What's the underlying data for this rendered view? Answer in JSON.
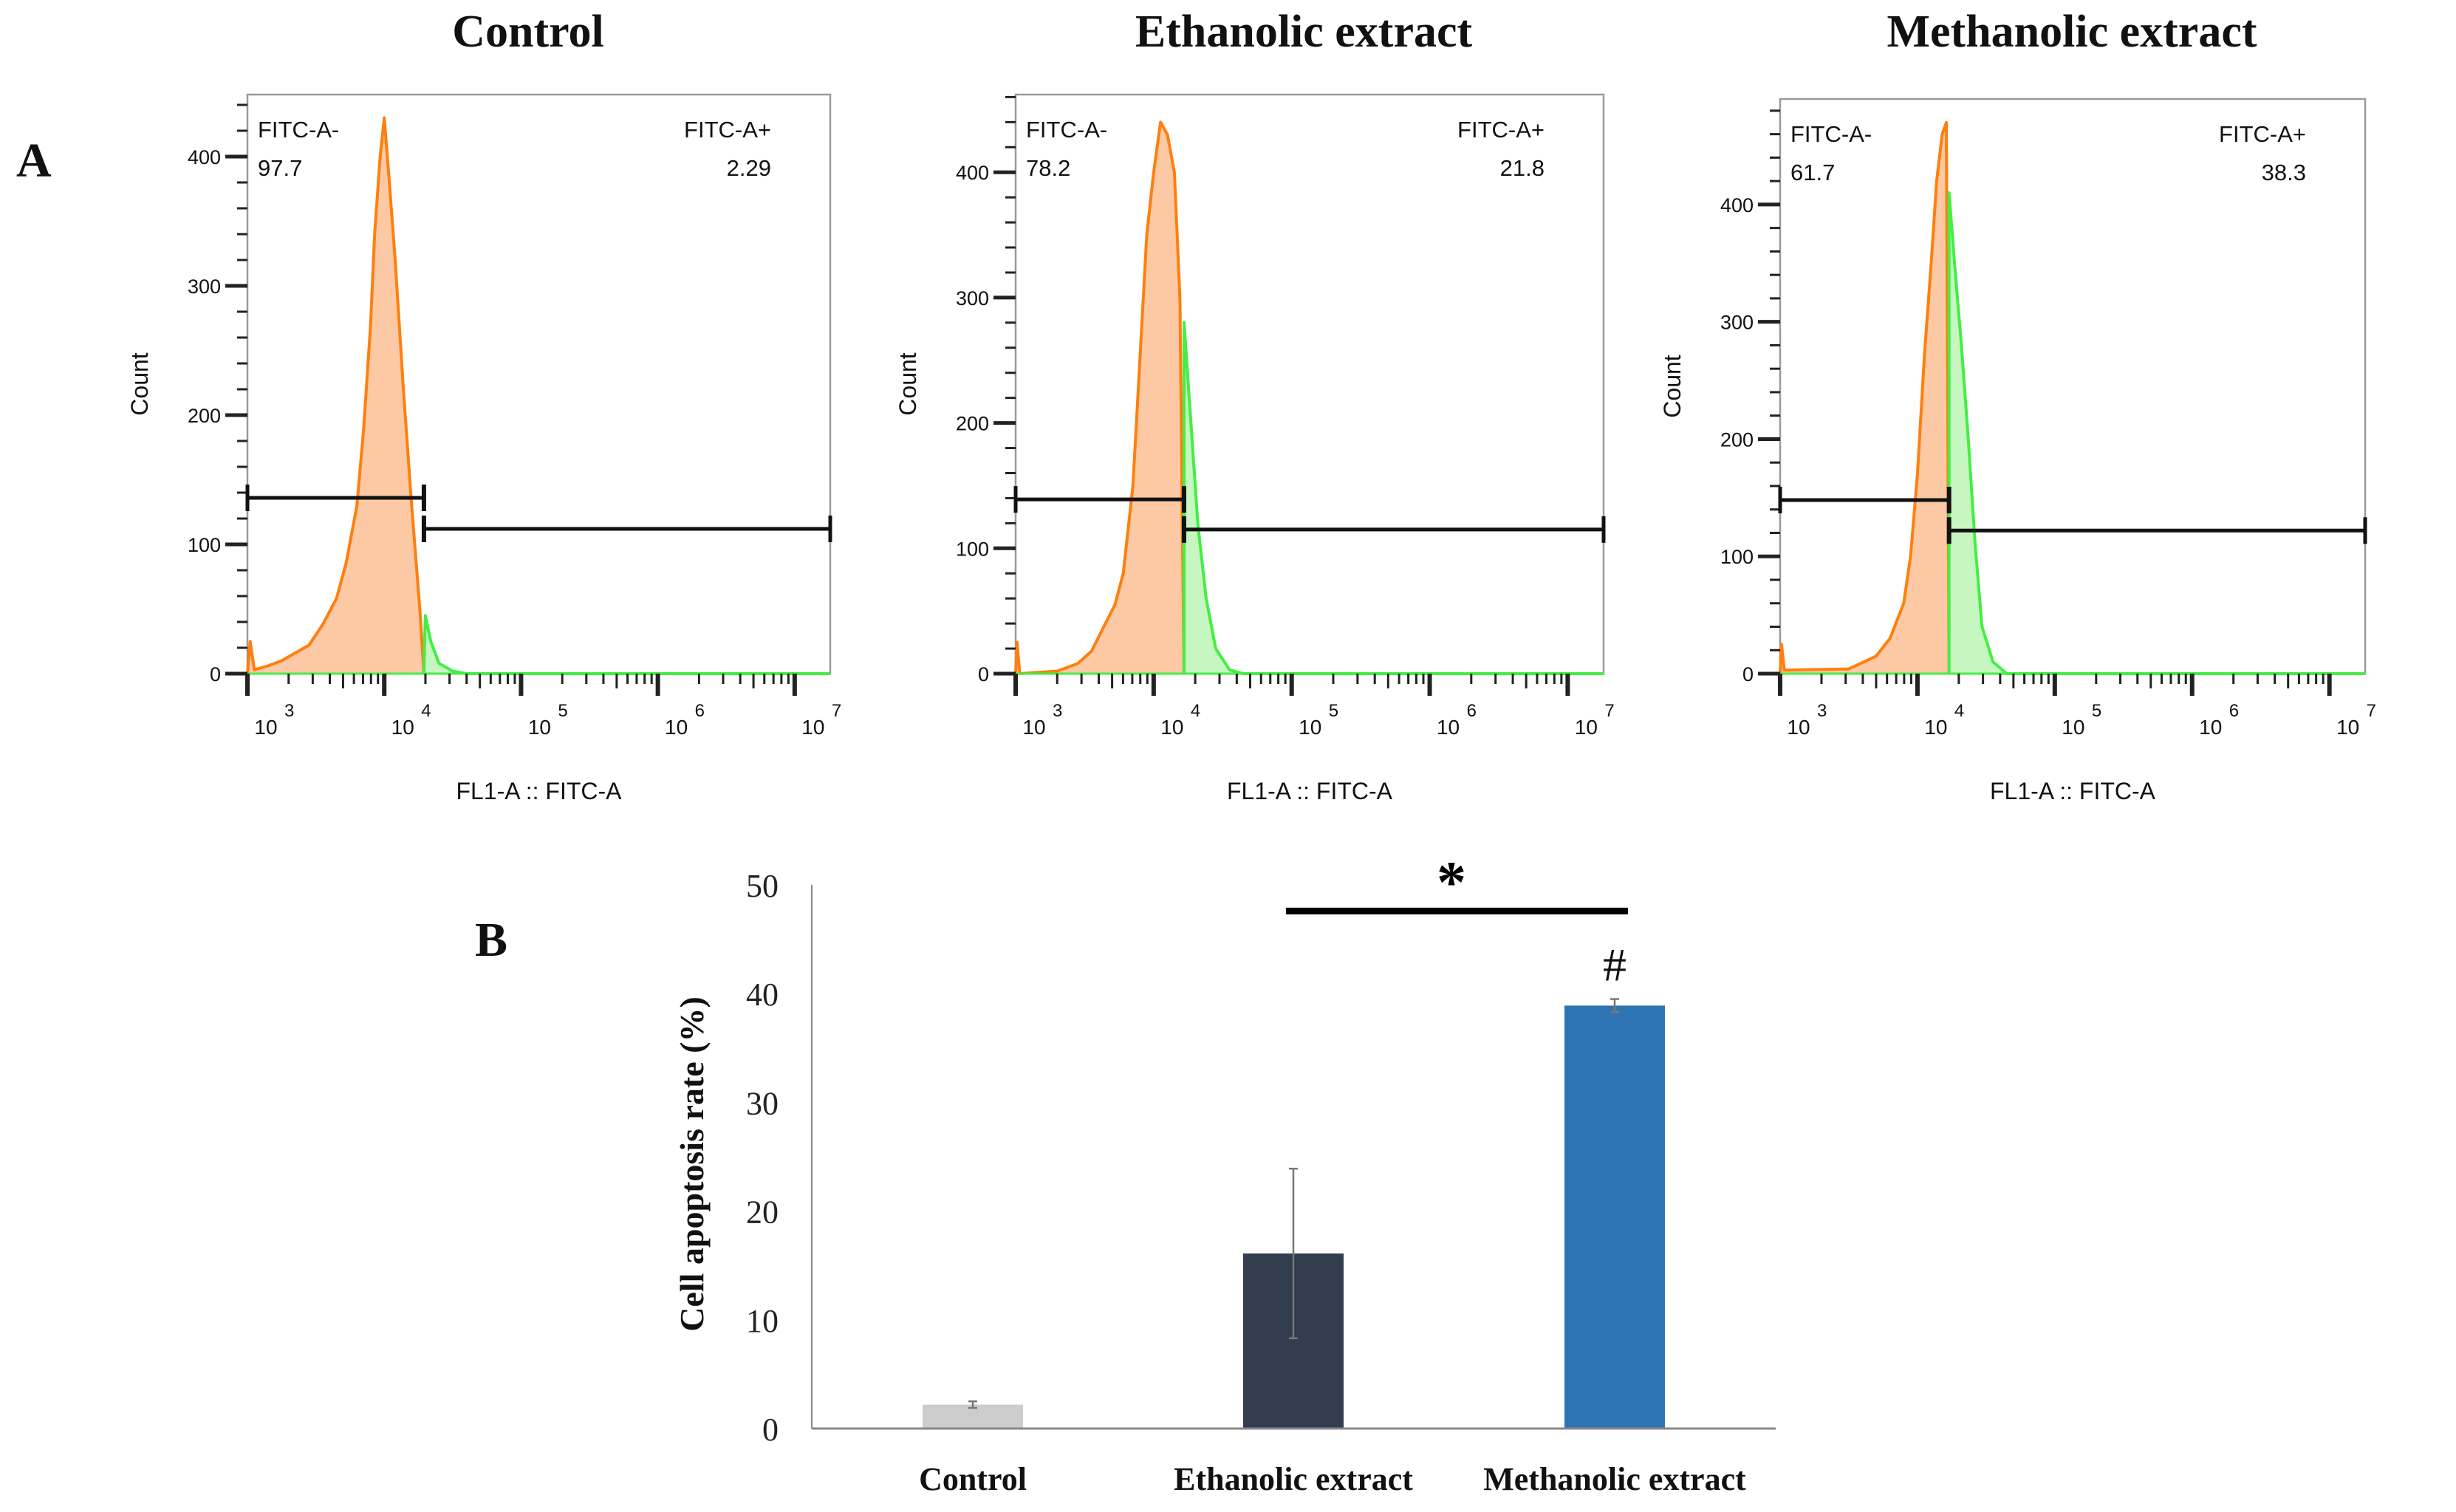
{
  "panel_labels": {
    "a": "A",
    "b": "B"
  },
  "chart_data": [
    {
      "type": "area",
      "title": "Control",
      "xlabel": "FL1-A :: FITC-A",
      "ylabel": "Count",
      "x_scale": "log10",
      "xlim_log10": [
        3.0,
        7.26
      ],
      "ylim": [
        0,
        448
      ],
      "x_tick_base": "10",
      "x_tick_exponents": [
        "3",
        "4",
        "5",
        "6",
        "7"
      ],
      "y_ticks": [
        "0",
        "100",
        "200",
        "300",
        "400"
      ],
      "gates": {
        "negative": {
          "label": "FITC-A-",
          "value": "97.7",
          "count_level": 136
        },
        "positive": {
          "label": "FITC-A+",
          "value": "2.29",
          "count_level": 112
        },
        "split_log10": 4.29
      },
      "series": [
        {
          "name": "FITC-A-",
          "color": "#ff7f0e",
          "fill": "#fcc9a4",
          "points": [
            [
              3.0,
              0
            ],
            [
              3.02,
              25
            ],
            [
              3.05,
              3
            ],
            [
              3.15,
              6
            ],
            [
              3.25,
              10
            ],
            [
              3.35,
              16
            ],
            [
              3.45,
              22
            ],
            [
              3.55,
              38
            ],
            [
              3.65,
              58
            ],
            [
              3.72,
              85
            ],
            [
              3.8,
              130
            ],
            [
              3.85,
              190
            ],
            [
              3.9,
              270
            ],
            [
              3.93,
              340
            ],
            [
              3.97,
              400
            ],
            [
              4.0,
              430
            ],
            [
              4.03,
              390
            ],
            [
              4.08,
              320
            ],
            [
              4.14,
              220
            ],
            [
              4.2,
              130
            ],
            [
              4.26,
              50
            ],
            [
              4.29,
              0
            ]
          ]
        },
        {
          "name": "FITC-A+",
          "color": "#44ee44",
          "fill": "#c6f7c0",
          "points": [
            [
              4.29,
              0
            ],
            [
              4.3,
              45
            ],
            [
              4.34,
              25
            ],
            [
              4.4,
              8
            ],
            [
              4.5,
              2
            ],
            [
              4.6,
              0
            ],
            [
              7.26,
              0
            ]
          ]
        }
      ]
    },
    {
      "type": "area",
      "title": "Ethanolic extract",
      "xlabel": "FL1-A :: FITC-A",
      "ylabel": "Count",
      "x_scale": "log10",
      "xlim_log10": [
        3.0,
        7.26
      ],
      "ylim": [
        0,
        462
      ],
      "x_tick_base": "10",
      "x_tick_exponents": [
        "3",
        "4",
        "5",
        "6",
        "7"
      ],
      "y_ticks": [
        "0",
        "100",
        "200",
        "300",
        "400"
      ],
      "gates": {
        "negative": {
          "label": "FITC-A-",
          "value": "78.2",
          "count_level": 139
        },
        "positive": {
          "label": "FITC-A+",
          "value": "21.8",
          "count_level": 115
        },
        "split_log10": 4.22
      },
      "series": [
        {
          "name": "FITC-A-",
          "color": "#ff7f0e",
          "fill": "#fcc9a4",
          "points": [
            [
              3.0,
              0
            ],
            [
              3.01,
              25
            ],
            [
              3.03,
              0
            ],
            [
              3.3,
              2
            ],
            [
              3.45,
              8
            ],
            [
              3.55,
              18
            ],
            [
              3.65,
              40
            ],
            [
              3.72,
              55
            ],
            [
              3.78,
              80
            ],
            [
              3.85,
              150
            ],
            [
              3.9,
              250
            ],
            [
              3.95,
              350
            ],
            [
              4.0,
              400
            ],
            [
              4.05,
              440
            ],
            [
              4.1,
              430
            ],
            [
              4.15,
              400
            ],
            [
              4.19,
              300
            ],
            [
              4.22,
              0
            ]
          ]
        },
        {
          "name": "FITC-A+",
          "color": "#44ee44",
          "fill": "#c6f7c0",
          "points": [
            [
              4.22,
              0
            ],
            [
              4.22,
              280
            ],
            [
              4.27,
              200
            ],
            [
              4.32,
              120
            ],
            [
              4.38,
              60
            ],
            [
              4.45,
              20
            ],
            [
              4.55,
              3
            ],
            [
              4.65,
              0
            ],
            [
              7.26,
              0
            ]
          ]
        }
      ]
    },
    {
      "type": "area",
      "title": "Methanolic extract",
      "xlabel": "FL1-A :: FITC-A",
      "ylabel": "Count",
      "x_scale": "log10",
      "xlim_log10": [
        3.0,
        7.26
      ],
      "ylim": [
        0,
        490
      ],
      "x_tick_base": "10",
      "x_tick_exponents": [
        "3",
        "4",
        "5",
        "6",
        "7"
      ],
      "y_ticks": [
        "0",
        "100",
        "200",
        "300",
        "400"
      ],
      "gates": {
        "negative": {
          "label": "FITC-A-",
          "value": "61.7",
          "count_level": 148
        },
        "positive": {
          "label": "FITC-A+",
          "value": "38.3",
          "count_level": 122
        },
        "split_log10": 4.23
      },
      "series": [
        {
          "name": "FITC-A-",
          "color": "#ff7f0e",
          "fill": "#fcc9a4",
          "points": [
            [
              3.0,
              0
            ],
            [
              3.01,
              25
            ],
            [
              3.03,
              3
            ],
            [
              3.5,
              4
            ],
            [
              3.7,
              15
            ],
            [
              3.8,
              30
            ],
            [
              3.9,
              60
            ],
            [
              3.95,
              100
            ],
            [
              4.0,
              170
            ],
            [
              4.05,
              270
            ],
            [
              4.1,
              350
            ],
            [
              4.14,
              420
            ],
            [
              4.18,
              460
            ],
            [
              4.21,
              470
            ],
            [
              4.23,
              0
            ]
          ]
        },
        {
          "name": "FITC-A+",
          "color": "#44ee44",
          "fill": "#c6f7c0",
          "points": [
            [
              4.23,
              0
            ],
            [
              4.23,
              410
            ],
            [
              4.27,
              350
            ],
            [
              4.32,
              280
            ],
            [
              4.37,
              200
            ],
            [
              4.42,
              110
            ],
            [
              4.47,
              40
            ],
            [
              4.55,
              10
            ],
            [
              4.65,
              0
            ],
            [
              7.26,
              0
            ]
          ]
        }
      ]
    },
    {
      "type": "bar",
      "title": "",
      "xlabel": "",
      "ylabel": "Cell apoptosis rate (%)",
      "ylim": [
        0,
        50
      ],
      "y_ticks": [
        "0",
        "10",
        "20",
        "30",
        "40",
        "50"
      ],
      "categories": [
        "Control",
        "Ethanolic extract",
        "Methanolic extract"
      ],
      "values": [
        2.2,
        16.1,
        38.9
      ],
      "errors": [
        0.3,
        7.8,
        0.6
      ],
      "colors": [
        "#cccccc",
        "#323e50",
        "#2e74b5"
      ],
      "annotations": {
        "significance_marker": "*",
        "significance_between": [
          "Ethanolic extract",
          "Methanolic extract"
        ],
        "hash_marker": "#",
        "hash_on": "Methanolic extract"
      }
    }
  ]
}
